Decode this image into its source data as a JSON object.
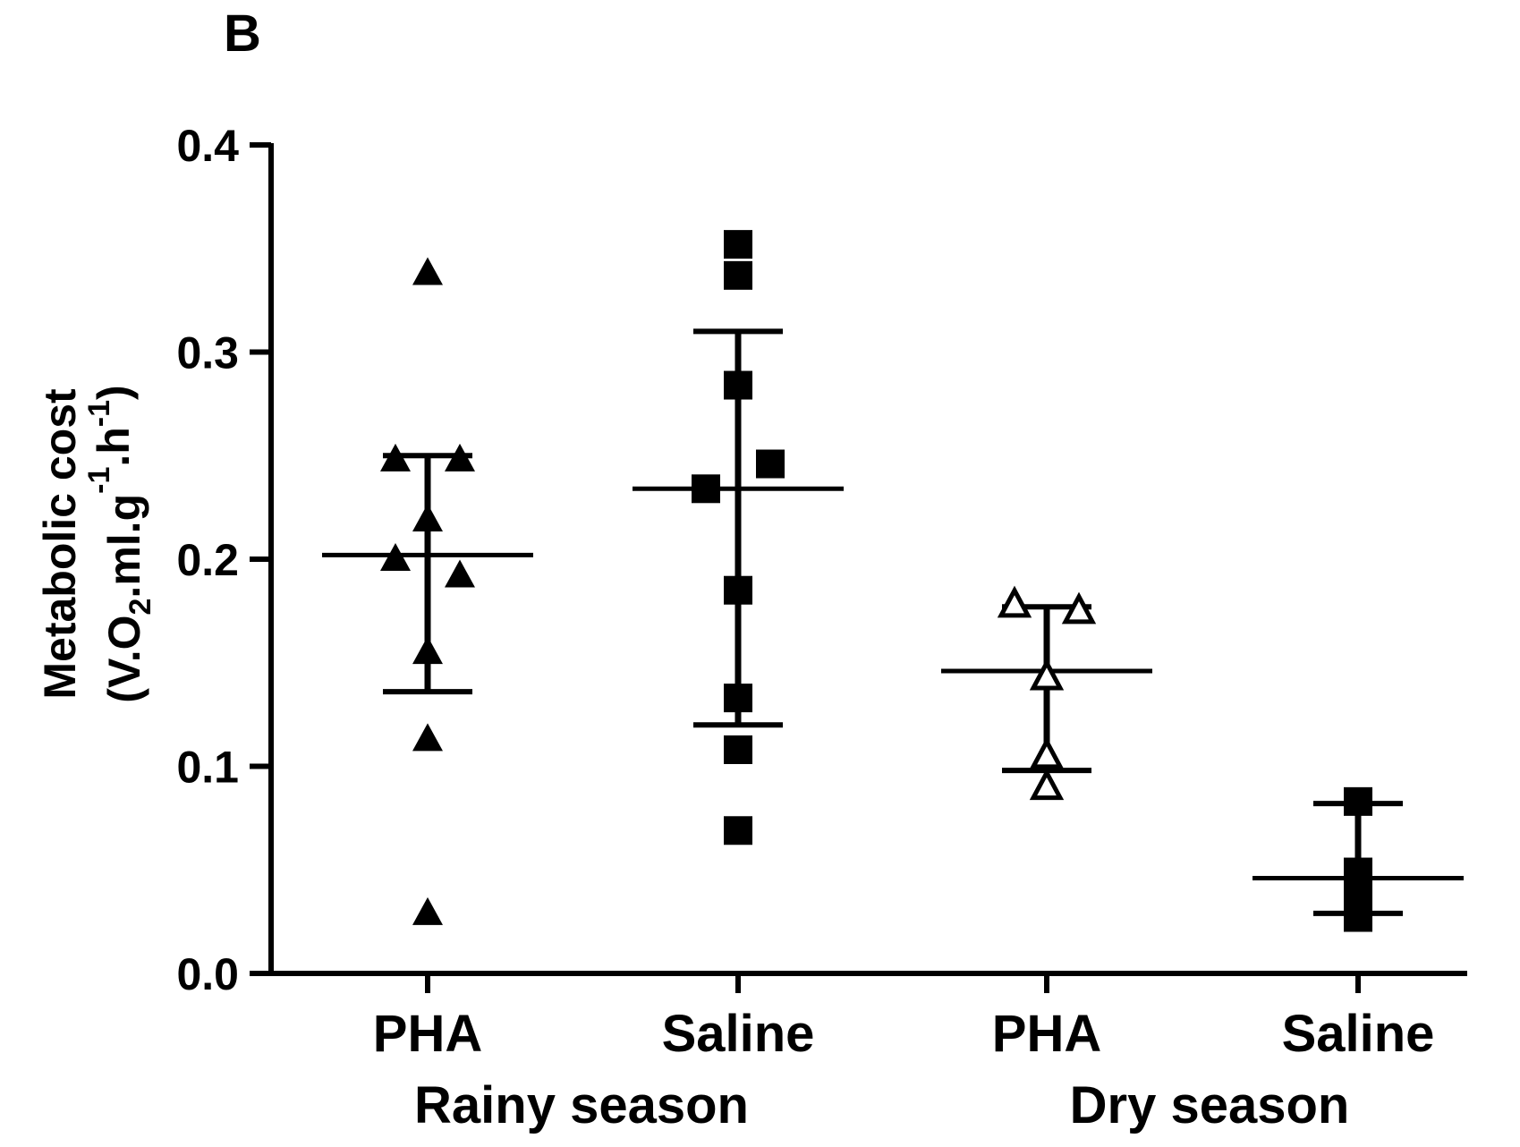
{
  "panel_label": "B",
  "chart_data": {
    "type": "scatter",
    "ylabel_line1": "Metabolic cost",
    "ylabel_line2_parts": [
      "(V.O",
      "2",
      ".ml.g",
      "-1",
      ".h",
      "-1",
      ")"
    ],
    "ylim": [
      0,
      0.4
    ],
    "yticks": [
      "0.0",
      "0.1",
      "0.2",
      "0.3",
      "0.4"
    ],
    "categories": [
      "PHA",
      "Saline",
      "PHA",
      "Saline"
    ],
    "group_labels": [
      "Rainy season",
      "Dry season"
    ],
    "series": [
      {
        "category": "PHA",
        "group": "Rainy season",
        "marker": "filled-triangle",
        "points": [
          {
            "dx": 0,
            "y": 0.338
          },
          {
            "dx": -1,
            "y": 0.248
          },
          {
            "dx": 1,
            "y": 0.248
          },
          {
            "dx": 0,
            "y": 0.219
          },
          {
            "dx": -1,
            "y": 0.2
          },
          {
            "dx": 1,
            "y": 0.192
          },
          {
            "dx": 0,
            "y": 0.155
          },
          {
            "dx": 0,
            "y": 0.113
          },
          {
            "dx": 0,
            "y": 0.029
          }
        ],
        "mean": 0.202,
        "sd_upper": 0.25,
        "sd_lower": 0.136
      },
      {
        "category": "Saline",
        "group": "Rainy season",
        "marker": "filled-square",
        "points": [
          {
            "dx": 0,
            "y": 0.352
          },
          {
            "dx": 0,
            "y": 0.337
          },
          {
            "dx": 0,
            "y": 0.284
          },
          {
            "dx": 1,
            "y": 0.246
          },
          {
            "dx": -1,
            "y": 0.234
          },
          {
            "dx": 0,
            "y": 0.185
          },
          {
            "dx": 0,
            "y": 0.133
          },
          {
            "dx": 0,
            "y": 0.108
          },
          {
            "dx": 0,
            "y": 0.069
          }
        ],
        "mean": 0.234,
        "sd_upper": 0.31,
        "sd_lower": 0.12
      },
      {
        "category": "PHA",
        "group": "Dry season",
        "marker": "open-triangle",
        "points": [
          {
            "dx": -1,
            "y": 0.178
          },
          {
            "dx": 1,
            "y": 0.175
          },
          {
            "dx": 0,
            "y": 0.143
          },
          {
            "dx": 0,
            "y": 0.105
          },
          {
            "dx": 0,
            "y": 0.09
          }
        ],
        "mean": 0.146,
        "sd_upper": 0.177,
        "sd_lower": 0.098
      },
      {
        "category": "Saline",
        "group": "Dry season",
        "marker": "filled-square",
        "points": [
          {
            "dx": 0,
            "y": 0.083
          },
          {
            "dx": 0,
            "y": 0.049
          },
          {
            "dx": 0,
            "y": 0.04
          },
          {
            "dx": 0,
            "y": 0.027
          }
        ],
        "mean": 0.046,
        "sd_upper": 0.082,
        "sd_lower": 0.029
      }
    ]
  }
}
